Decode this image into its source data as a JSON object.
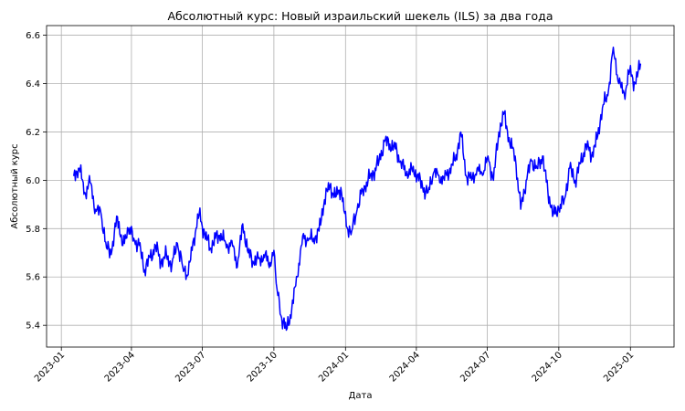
{
  "chart_data": {
    "type": "line",
    "title": "Абсолютный курс: Новый израильский шекель (ILS) за два года",
    "xlabel": "Дата",
    "ylabel": "Абсолютный курс",
    "x_ticks": [
      "2023-01",
      "2023-04",
      "2023-07",
      "2023-10",
      "2024-01",
      "2024-04",
      "2024-07",
      "2024-10",
      "2025-01"
    ],
    "y_ticks": [
      "5.4",
      "5.6",
      "5.8",
      "6.0",
      "6.2",
      "6.4",
      "6.6"
    ],
    "xlim": [
      "2022-12-13",
      "2025-02-26"
    ],
    "ylim": [
      5.31,
      6.64
    ],
    "grid": true,
    "colors": {
      "series": "#0000ff",
      "ylabel": "#0000cc",
      "grid": "#b0b0b0"
    },
    "series": [
      {
        "x": [
          "2023-01-17",
          "2023-01-24",
          "2023-01-31",
          "2023-02-07",
          "2023-02-14",
          "2023-02-21",
          "2023-02-28",
          "2023-03-07",
          "2023-03-14",
          "2023-03-21",
          "2023-03-28",
          "2023-04-04",
          "2023-04-11",
          "2023-04-18",
          "2023-04-25",
          "2023-05-02",
          "2023-05-09",
          "2023-05-16",
          "2023-05-23",
          "2023-05-30",
          "2023-06-06",
          "2023-06-13",
          "2023-06-20",
          "2023-06-27",
          "2023-07-04",
          "2023-07-11",
          "2023-07-18",
          "2023-07-25",
          "2023-08-01",
          "2023-08-08",
          "2023-08-15",
          "2023-08-22",
          "2023-08-29",
          "2023-09-05",
          "2023-09-12",
          "2023-09-19",
          "2023-09-26",
          "2023-10-01",
          "2023-10-05",
          "2023-10-10",
          "2023-10-17",
          "2023-10-24",
          "2023-10-31",
          "2023-11-07",
          "2023-11-14",
          "2023-11-21",
          "2023-11-28",
          "2023-12-05",
          "2023-12-12",
          "2023-12-19",
          "2023-12-26",
          "2024-01-02",
          "2024-01-09",
          "2024-01-16",
          "2024-01-23",
          "2024-01-30",
          "2024-02-06",
          "2024-02-13",
          "2024-02-20",
          "2024-02-27",
          "2024-03-05",
          "2024-03-12",
          "2024-03-19",
          "2024-03-26",
          "2024-04-02",
          "2024-04-09",
          "2024-04-16",
          "2024-04-23",
          "2024-04-30",
          "2024-05-07",
          "2024-05-14",
          "2024-05-21",
          "2024-05-28",
          "2024-06-04",
          "2024-06-11",
          "2024-06-18",
          "2024-06-25",
          "2024-07-02",
          "2024-07-09",
          "2024-07-16",
          "2024-07-23",
          "2024-07-30",
          "2024-08-06",
          "2024-08-13",
          "2024-08-20",
          "2024-08-27",
          "2024-09-03",
          "2024-09-10",
          "2024-09-17",
          "2024-09-24",
          "2024-10-01",
          "2024-10-08",
          "2024-10-15",
          "2024-10-22",
          "2024-10-29",
          "2024-11-05",
          "2024-11-12",
          "2024-11-19",
          "2024-11-26",
          "2024-12-03",
          "2024-12-10",
          "2024-12-17",
          "2024-12-24",
          "2024-12-31",
          "2025-01-07",
          "2025-01-14"
        ],
        "y": [
          6.02,
          6.05,
          5.95,
          5.99,
          5.88,
          5.86,
          5.72,
          5.71,
          5.85,
          5.73,
          5.8,
          5.76,
          5.73,
          5.63,
          5.68,
          5.73,
          5.66,
          5.69,
          5.65,
          5.74,
          5.64,
          5.61,
          5.76,
          5.86,
          5.78,
          5.72,
          5.76,
          5.78,
          5.72,
          5.75,
          5.64,
          5.82,
          5.7,
          5.66,
          5.68,
          5.68,
          5.66,
          5.71,
          5.55,
          5.44,
          5.38,
          5.47,
          5.6,
          5.77,
          5.75,
          5.76,
          5.79,
          5.92,
          5.98,
          5.93,
          5.97,
          5.81,
          5.79,
          5.88,
          5.96,
          6.0,
          6.03,
          6.08,
          6.16,
          6.15,
          6.13,
          6.08,
          6.02,
          6.05,
          6.02,
          5.97,
          5.95,
          6.03,
          6.02,
          6.0,
          6.05,
          6.08,
          6.2,
          6.02,
          6.0,
          6.05,
          6.02,
          6.1,
          6.0,
          6.2,
          6.28,
          6.15,
          6.1,
          5.88,
          6.0,
          6.08,
          6.05,
          6.1,
          5.95,
          5.86,
          5.88,
          5.92,
          6.05,
          6.0,
          6.07,
          6.15,
          6.1,
          6.17,
          6.3,
          6.35,
          6.55,
          6.4,
          6.36,
          6.45,
          6.4,
          6.48
        ]
      }
    ]
  }
}
